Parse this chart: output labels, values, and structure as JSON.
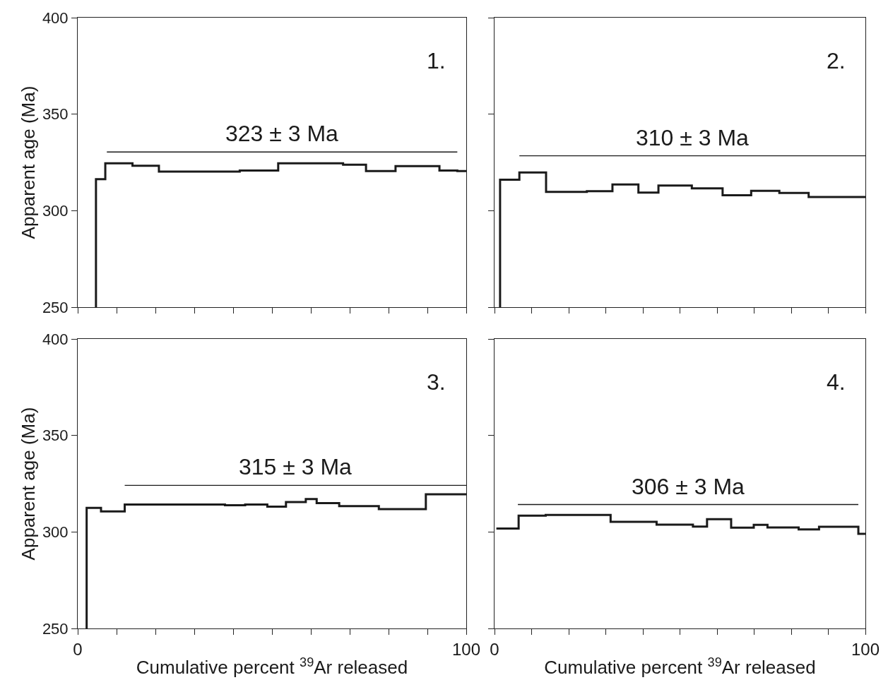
{
  "chart_data": [
    {
      "type": "step",
      "ylabel": "Apparent age (Ma)",
      "xlim": [
        0,
        100
      ],
      "ylim": [
        250,
        400
      ],
      "tick_labels": "y",
      "xticks": [
        0,
        {
          "value": 10,
          "label": null
        },
        {
          "value": 20,
          "label": null
        },
        {
          "value": 30,
          "label": null
        },
        {
          "value": 40,
          "label": null
        },
        {
          "value": 50,
          "label": null
        },
        {
          "value": 60,
          "label": null
        },
        {
          "value": 70,
          "label": null
        },
        {
          "value": 80,
          "label": null
        },
        {
          "value": 90,
          "label": null
        },
        100
      ],
      "yticks": [
        250,
        300,
        350,
        400
      ],
      "series": [
        {
          "color": "#1a1a1a",
          "x": [
            4.7,
            4.7,
            7.1,
            14.1,
            20.9,
            41.7,
            51.6,
            68.3,
            74.2,
            81.8,
            93.1,
            97.7,
            100
          ],
          "values": [
            250,
            316.3,
            324.5,
            323.3,
            320.2,
            320.8,
            324.5,
            323.8,
            320.5,
            323.1,
            320.8,
            320.5,
            320.5
          ]
        },
        {
          "type": "line",
          "color": "#1a1a1a",
          "x": [
            7.5,
            97.7
          ],
          "values": [
            330.4,
            330.4
          ]
        }
      ],
      "annotations": [
        {
          "text": "323 ± 3 Ma",
          "y": 330.4
        },
        "1."
      ]
    },
    {
      "type": "step",
      "xlim": [
        0,
        100
      ],
      "ylim": [
        250,
        400
      ],
      "tick_labels": false,
      "xticks": [
        0,
        {
          "value": 10,
          "label": null
        },
        {
          "value": 20,
          "label": null
        },
        {
          "value": 30,
          "label": null
        },
        {
          "value": 40,
          "label": null
        },
        {
          "value": 50,
          "label": null
        },
        {
          "value": 60,
          "label": null
        },
        {
          "value": 70,
          "label": null
        },
        {
          "value": 80,
          "label": null
        },
        {
          "value": 90,
          "label": null
        },
        100
      ],
      "yticks": [
        250,
        300,
        350,
        400
      ],
      "series": [
        {
          "color": "#1a1a1a",
          "x": [
            1.5,
            1.5,
            6.7,
            13.9,
            24.9,
            31.8,
            38.8,
            44.2,
            53.2,
            61.5,
            69.2,
            76.8,
            84.7,
            100
          ],
          "values": [
            250,
            316.0,
            319.8,
            309.7,
            310.1,
            313.6,
            309.4,
            313.0,
            311.6,
            308.0,
            310.3,
            309.2,
            307.1,
            307.1
          ]
        },
        {
          "type": "line",
          "color": "#1a1a1a",
          "x": [
            6.7,
            100
          ],
          "values": [
            328.4,
            328.4
          ]
        }
      ],
      "annotations": [
        {
          "text": "310 ± 3 Ma",
          "y": 328.4
        },
        "2."
      ]
    },
    {
      "type": "step",
      "ylabel": "Apparent age (Ma)",
      "xlabel": "Cumulative percent $^{39}$Ar released",
      "xlim": [
        0,
        100
      ],
      "ylim": [
        250,
        400
      ],
      "xticks": [
        0,
        {
          "value": 10,
          "label": null
        },
        {
          "value": 20,
          "label": null
        },
        {
          "value": 30,
          "label": null
        },
        {
          "value": 40,
          "label": null
        },
        {
          "value": 50,
          "label": null
        },
        {
          "value": 60,
          "label": null
        },
        {
          "value": 70,
          "label": null
        },
        {
          "value": 80,
          "label": null
        },
        {
          "value": 90,
          "label": null
        },
        100
      ],
      "yticks": [
        250,
        300,
        350,
        400
      ],
      "series": [
        {
          "color": "#1a1a1a",
          "x": [
            2.3,
            2.3,
            6.0,
            12.1,
            37.9,
            43.1,
            48.8,
            53.6,
            58.7,
            61.5,
            67.3,
            77.5,
            89.6,
            100
          ],
          "values": [
            250,
            312.5,
            310.6,
            314.2,
            313.8,
            314.2,
            313.1,
            315.5,
            317.0,
            314.9,
            313.4,
            311.8,
            319.5,
            319.5
          ]
        },
        {
          "type": "line",
          "color": "#1a1a1a",
          "x": [
            12.1,
            100
          ],
          "values": [
            324.1,
            324.1
          ]
        }
      ],
      "annotations": [
        {
          "text": "315 ± 3 Ma",
          "y": 324.1
        },
        "3."
      ]
    },
    {
      "type": "step",
      "xlabel": "Cumulative percent $^{39}$Ar released",
      "xlim": [
        0,
        100
      ],
      "ylim": [
        250,
        400
      ],
      "tick_labels": "x",
      "xticks": [
        0,
        {
          "value": 10,
          "label": null
        },
        {
          "value": 20,
          "label": null
        },
        {
          "value": 30,
          "label": null
        },
        {
          "value": 40,
          "label": null
        },
        {
          "value": 50,
          "label": null
        },
        {
          "value": 60,
          "label": null
        },
        {
          "value": 70,
          "label": null
        },
        {
          "value": 80,
          "label": null
        },
        {
          "value": 90,
          "label": null
        },
        100
      ],
      "yticks": [
        250,
        300,
        350,
        400
      ],
      "series": [
        {
          "color": "#1a1a1a",
          "x": [
            0.5,
            6.5,
            13.8,
            31.3,
            43.7,
            53.5,
            57.3,
            63.8,
            69.9,
            73.6,
            82.0,
            87.5,
            98.1,
            100
          ],
          "values": [
            301.8,
            308.4,
            308.8,
            305.2,
            303.8,
            302.8,
            306.6,
            302.2,
            303.7,
            302.3,
            301.3,
            302.7,
            299.0,
            299.0
          ]
        },
        {
          "type": "line",
          "color": "#1a1a1a",
          "x": [
            6.3,
            98.1
          ],
          "values": [
            314.2,
            314.2
          ]
        }
      ],
      "annotations": [
        {
          "text": "306 ± 3 Ma",
          "y": 314.2
        },
        "4."
      ]
    }
  ]
}
